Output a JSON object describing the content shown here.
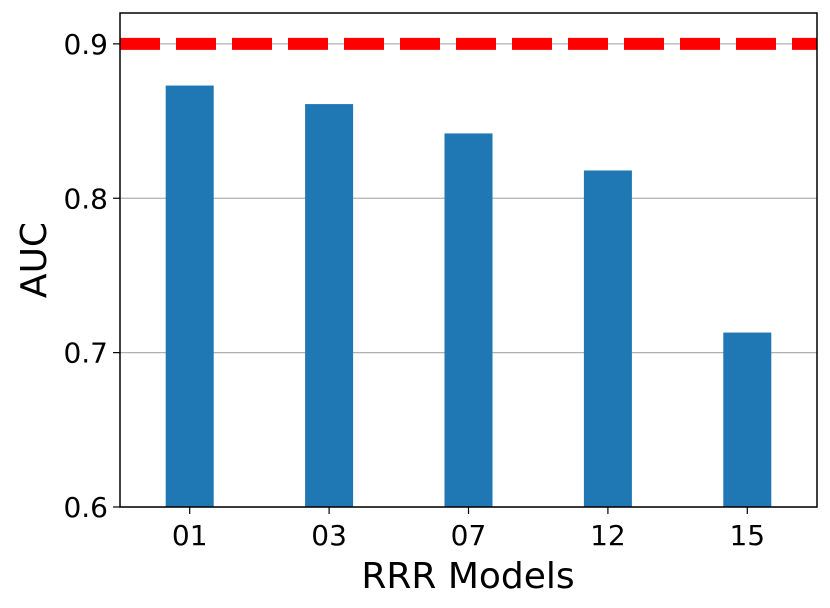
{
  "chart_data": {
    "type": "bar",
    "title": "",
    "xlabel": "RRR Models",
    "ylabel": "AUC",
    "categories": [
      "01",
      "03",
      "07",
      "12",
      "15"
    ],
    "values": [
      0.873,
      0.861,
      0.842,
      0.818,
      0.713
    ],
    "ylim": [
      0.6,
      0.92
    ],
    "yticks": [
      "0.6",
      "0.7",
      "0.8",
      "0.9"
    ],
    "grid": "horizontal",
    "bar_color": "#1f77b4",
    "reference_line": {
      "y": 0.9,
      "color": "#ff0000",
      "style": "dashed"
    }
  }
}
